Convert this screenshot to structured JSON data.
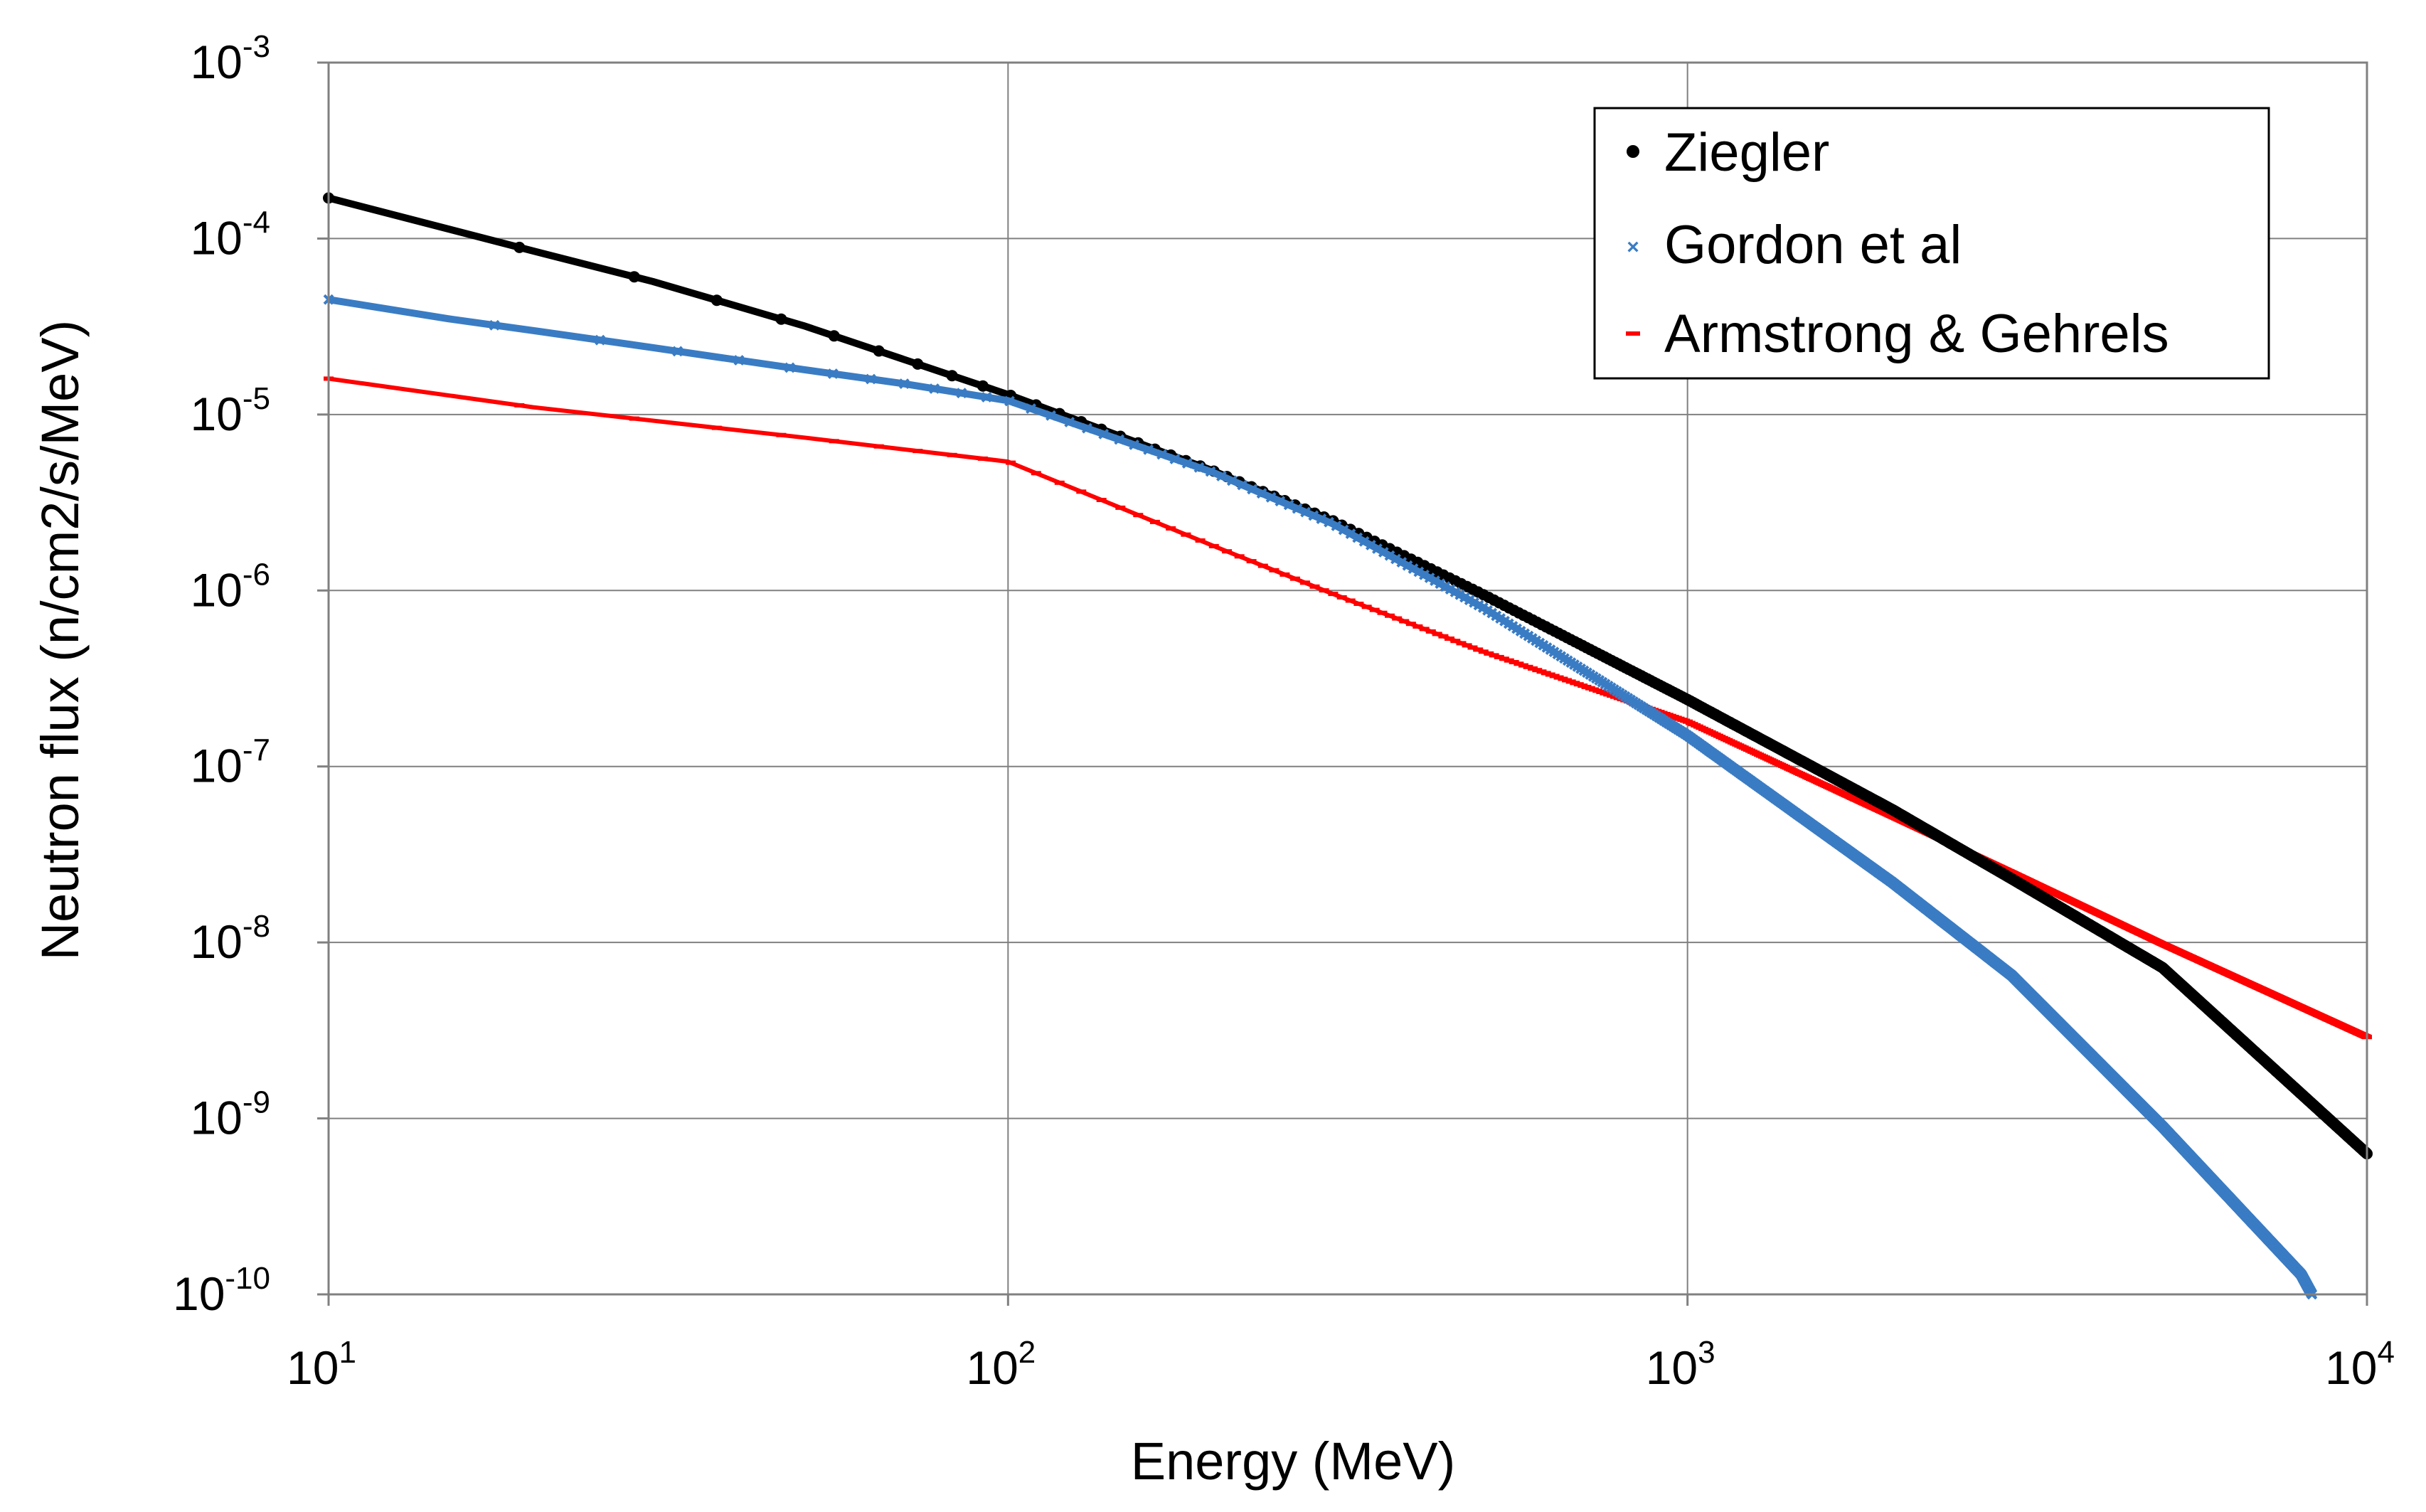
{
  "chart_data": {
    "type": "line",
    "xlabel": "Energy (MeV)",
    "ylabel": "Neutron flux (n/cm2/s/MeV)",
    "xscale": "log",
    "yscale": "log",
    "xlim": [
      10,
      10000
    ],
    "ylim": [
      1e-10,
      0.001
    ],
    "grid": true,
    "legend_position": "top-right",
    "x_ticks": [
      {
        "base": "10",
        "exp": "1",
        "value": 10
      },
      {
        "base": "10",
        "exp": "2",
        "value": 100
      },
      {
        "base": "10",
        "exp": "3",
        "value": 1000
      },
      {
        "base": "10",
        "exp": "4",
        "value": 10000
      }
    ],
    "y_ticks": [
      {
        "base": "10",
        "exp": "-3",
        "value": 0.001
      },
      {
        "base": "10",
        "exp": "-4",
        "value": 0.0001
      },
      {
        "base": "10",
        "exp": "-5",
        "value": 1e-05
      },
      {
        "base": "10",
        "exp": "-6",
        "value": 1e-06
      },
      {
        "base": "10",
        "exp": "-7",
        "value": 1e-07
      },
      {
        "base": "10",
        "exp": "-8",
        "value": 1e-08
      },
      {
        "base": "10",
        "exp": "-9",
        "value": 1e-09
      },
      {
        "base": "10",
        "exp": "-10",
        "value": 1e-10
      }
    ],
    "series": [
      {
        "name": "Ziegler",
        "color": "#000000",
        "marker": "dot",
        "x": [
          10,
          20,
          30,
          50,
          100,
          200,
          300,
          500,
          1000,
          2000,
          3000,
          5000,
          10000
        ],
        "y": [
          0.00017,
          8.5e-05,
          5.7e-05,
          3.2e-05,
          1.3e-05,
          4.8e-06,
          2.5e-06,
          9.5e-07,
          2.4e-07,
          5.7e-08,
          2.3e-08,
          7.2e-09,
          6.3e-10
        ]
      },
      {
        "name": "Gordon et al",
        "color": "#3a7cc4",
        "marker": "cross",
        "x": [
          10,
          15,
          20,
          30,
          50,
          70,
          100,
          200,
          300,
          500,
          1000,
          2000,
          3000,
          5000,
          8000,
          8300
        ],
        "y": [
          4.5e-05,
          3.5e-05,
          3e-05,
          2.4e-05,
          1.8e-05,
          1.5e-05,
          1.2e-05,
          4.7e-06,
          2.4e-06,
          8e-07,
          1.5e-07,
          2.2e-08,
          6.5e-09,
          9e-10,
          1.3e-10,
          1e-10
        ]
      },
      {
        "name": "Armstrong & Gehrels",
        "color": "#ff0000",
        "marker": "dash",
        "x": [
          10,
          20,
          50,
          100,
          200,
          300,
          500,
          1000,
          2000,
          3000,
          5000,
          10000
        ],
        "y": [
          1.6e-05,
          1.1e-05,
          7.4e-06,
          5.4e-06,
          1.8e-06,
          9.6e-07,
          4.5e-07,
          1.8e-07,
          5.2e-08,
          2.5e-08,
          9.8e-09,
          2.9e-09
        ]
      }
    ]
  }
}
